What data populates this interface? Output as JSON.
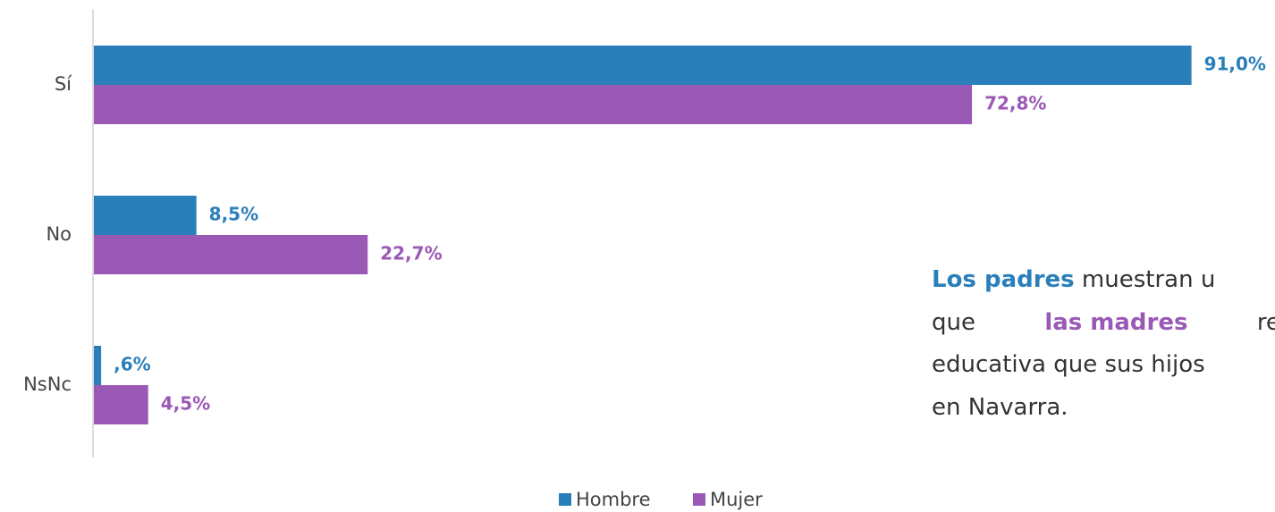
{
  "chart_data": {
    "type": "barh",
    "categories": [
      "Sí",
      "No",
      "NsNc"
    ],
    "series": [
      {
        "name": "Hombre",
        "color": "#2a7fba",
        "values": [
          91.0,
          8.5,
          0.6
        ],
        "value_labels": [
          "91,0%",
          "8,5%",
          ",6%"
        ]
      },
      {
        "name": "Mujer",
        "color": "#9b59b6",
        "values": [
          72.8,
          22.7,
          4.5
        ],
        "value_labels": [
          "72,8%",
          "22,7%",
          "4,5%"
        ]
      }
    ],
    "xlim": [
      0,
      100
    ],
    "legend": "bottom",
    "annotation": [
      [
        {
          "text": "Los padres",
          "color": "#2a7fba",
          "bold": true
        },
        {
          "text": " muestran u"
        }
      ],
      [
        {
          "text": "que"
        },
        {
          "text": "las madres",
          "color": "#9b59b6",
          "bold": true
        },
        {
          "text": "resp"
        }
      ],
      [
        {
          "text": "educativa que sus hijos"
        }
      ],
      [
        {
          "text": "en Navarra."
        }
      ]
    ]
  }
}
